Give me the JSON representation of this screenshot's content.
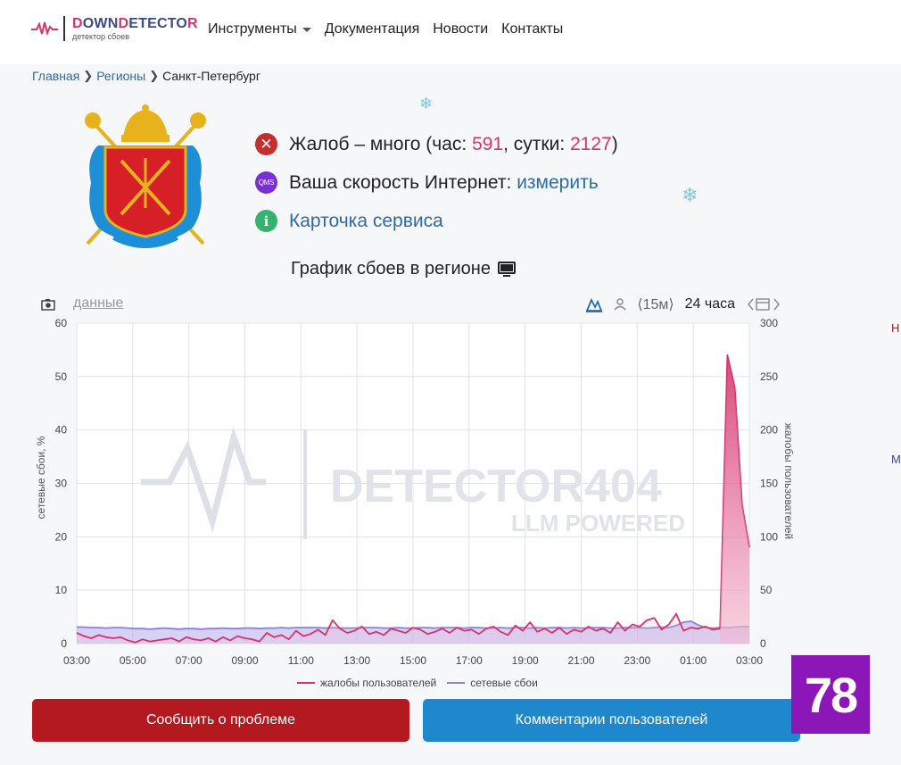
{
  "header": {
    "logo_title_accent": "D",
    "logo_title_mid": "OWN",
    "logo_title_accent2": "D",
    "logo_title_rest": "ETECTO",
    "logo_title_end": "R",
    "logo_subtitle": "детектор сбоев",
    "nav": [
      {
        "label": "Инструменты"
      },
      {
        "label": "Документация"
      },
      {
        "label": "Новости"
      },
      {
        "label": "Контакты"
      }
    ]
  },
  "breadcrumb": {
    "home": "Главная",
    "regions": "Регионы",
    "current": "Санкт-Петербург"
  },
  "info": {
    "complaints_prefix": "Жалоб – много (час: ",
    "complaints_hour": "591",
    "complaints_mid": ", сутки: ",
    "complaints_day": "2127",
    "complaints_suffix": ")",
    "qms_badge": "QMS",
    "speed_label": "Ваша скорость Интернет: ",
    "speed_link": "измерить",
    "card_link": "Карточка сервиса",
    "info_icon_glyph": "i",
    "close_icon_glyph": "✕"
  },
  "chart_title": "График сбоев в регионе",
  "toolbar": {
    "data_link": "данные",
    "interval": "⟨15м⟩",
    "period": "24 часа"
  },
  "edge": {
    "h": "Н",
    "m": "М"
  },
  "buttons": {
    "report": "Сообщить о проблеме",
    "comments": "Комментарии пользователей"
  },
  "badge": "78",
  "colors": {
    "complaints": "#d6336c",
    "outages": "#8e7fd9",
    "report_button": "#b3191f",
    "comments_button": "#1f88cc",
    "badge": "#8b17b8"
  },
  "chart_data": {
    "type": "area",
    "x": [
      "03:00",
      "03:15",
      "03:30",
      "03:45",
      "04:00",
      "04:15",
      "04:30",
      "04:45",
      "05:00",
      "05:15",
      "05:30",
      "05:45",
      "06:00",
      "06:15",
      "06:30",
      "06:45",
      "07:00",
      "07:15",
      "07:30",
      "07:45",
      "08:00",
      "08:15",
      "08:30",
      "08:45",
      "09:00",
      "09:15",
      "09:30",
      "09:45",
      "10:00",
      "10:15",
      "10:30",
      "10:45",
      "11:00",
      "11:15",
      "11:30",
      "11:45",
      "12:00",
      "12:15",
      "12:30",
      "12:45",
      "13:00",
      "13:15",
      "13:30",
      "13:45",
      "14:00",
      "14:15",
      "14:30",
      "14:45",
      "15:00",
      "15:15",
      "15:30",
      "15:45",
      "16:00",
      "16:15",
      "16:30",
      "16:45",
      "17:00",
      "17:15",
      "17:30",
      "17:45",
      "18:00",
      "18:15",
      "18:30",
      "18:45",
      "19:00",
      "19:15",
      "19:30",
      "19:45",
      "20:00",
      "20:15",
      "20:30",
      "20:45",
      "21:00",
      "21:15",
      "21:30",
      "21:45",
      "22:00",
      "22:15",
      "22:30",
      "22:45",
      "23:00",
      "23:15",
      "23:30",
      "23:45",
      "00:00",
      "00:15",
      "00:30",
      "00:45",
      "01:00",
      "01:15",
      "01:30",
      "01:45",
      "02:00"
    ],
    "x_ticks": [
      "03:00",
      "05:00",
      "07:00",
      "09:00",
      "11:00",
      "13:00",
      "15:00",
      "17:00",
      "19:00",
      "21:00",
      "23:00",
      "01:00",
      "03:00"
    ],
    "series": [
      {
        "name": "жалобы пользователей",
        "axis": "right",
        "values": [
          10,
          7,
          5,
          8,
          6,
          5,
          6,
          3,
          1,
          4,
          2,
          3,
          4,
          5,
          2,
          6,
          4,
          3,
          5,
          2,
          6,
          3,
          7,
          5,
          4,
          2,
          10,
          6,
          8,
          4,
          12,
          7,
          9,
          13,
          8,
          22,
          14,
          10,
          12,
          16,
          9,
          11,
          8,
          14,
          12,
          10,
          15,
          13,
          9,
          11,
          14,
          10,
          15,
          12,
          13,
          9,
          14,
          16,
          11,
          8,
          17,
          12,
          20,
          11,
          14,
          10,
          15,
          9,
          13,
          11,
          16,
          12,
          14,
          10,
          20,
          12,
          18,
          16,
          22,
          24,
          13,
          18,
          28,
          12,
          15,
          14,
          16,
          13,
          14,
          270,
          240,
          130,
          90
        ]
      },
      {
        "name": "сетевые сбои",
        "axis": "left",
        "values": [
          3.1,
          3.1,
          3.0,
          3.0,
          2.9,
          3.0,
          3.0,
          2.9,
          2.8,
          2.8,
          2.7,
          2.8,
          2.9,
          2.8,
          2.7,
          2.8,
          2.8,
          2.7,
          2.8,
          2.8,
          2.9,
          2.8,
          2.8,
          2.9,
          2.9,
          2.8,
          2.9,
          2.9,
          3.0,
          2.9,
          3.0,
          3.0,
          3.0,
          3.0,
          2.9,
          3.0,
          2.9,
          2.9,
          2.9,
          3.0,
          3.0,
          3.0,
          2.9,
          2.9,
          3.0,
          2.9,
          2.9,
          3.0,
          3.0,
          2.9,
          3.0,
          3.0,
          3.0,
          2.9,
          3.0,
          3.0,
          2.9,
          2.9,
          3.0,
          2.9,
          3.0,
          3.0,
          2.9,
          3.0,
          2.9,
          3.0,
          3.0,
          2.9,
          3.0,
          2.9,
          2.9,
          3.0,
          3.0,
          2.9,
          2.9,
          3.0,
          3.0,
          3.0,
          2.9,
          3.0,
          3.1,
          3.0,
          3.4,
          4.0,
          4.2,
          3.5,
          3.0,
          2.9,
          3.0,
          3.0,
          3.1,
          3.2,
          3.2
        ]
      }
    ],
    "ylabel": "сетевые сбои, %",
    "ylabel_right": "жалобы пользователей",
    "ylim": [
      0,
      60
    ],
    "ylim_right": [
      0,
      300
    ],
    "y_ticks": [
      0,
      10,
      20,
      30,
      40,
      50,
      60
    ],
    "y_ticks_right": [
      0,
      50,
      100,
      150,
      200,
      250,
      300
    ],
    "grid": true,
    "legend": "bottom",
    "watermark_line1": "DETECTOR404",
    "watermark_line2": "LLM POWERED"
  }
}
